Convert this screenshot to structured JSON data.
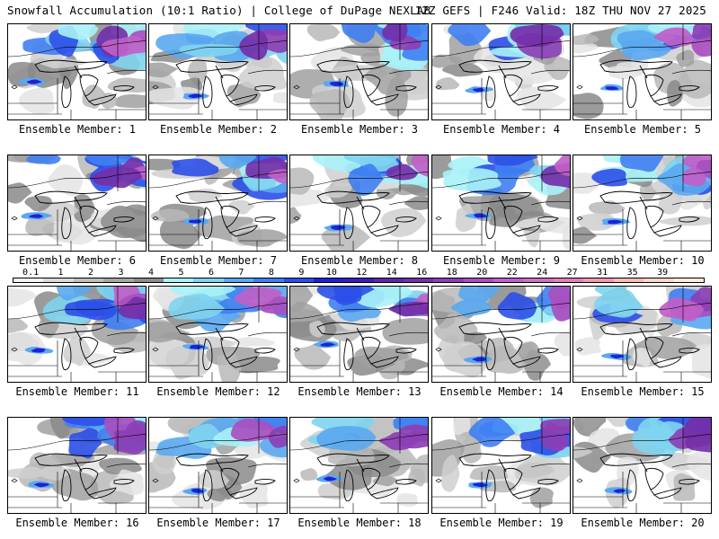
{
  "header": {
    "title_left": "Snowfall Accumulation (10:1 Ratio) | College of DuPage NEXLAB",
    "title_right": "12Z GEFS | F246 Valid: 18Z THU NOV 27 2025"
  },
  "colorbar": {
    "labels": [
      "0.1",
      "1",
      "2",
      "3",
      "4",
      "5",
      "6",
      "7",
      "8",
      "9",
      "10",
      "12",
      "14",
      "16",
      "18",
      "20",
      "22",
      "24",
      "27",
      "31",
      "35",
      "39"
    ],
    "colors": [
      "#f4f4f4",
      "#d9d9d9",
      "#bfbfbf",
      "#a6a6a6",
      "#8c8c8c",
      "#a9f2f7",
      "#7fd4f0",
      "#5aa8f0",
      "#3f7ff2",
      "#2b4fe8",
      "#1e22d6",
      "#3a1fb8",
      "#5a2aa8",
      "#7430a8",
      "#8c3fb4",
      "#a84fc0",
      "#c060c8",
      "#d070c0",
      "#e080b8",
      "#f09ab0",
      "#f8bcb4",
      "#fad8c8",
      "#fcebdd"
    ]
  },
  "members": [
    {
      "label": "Ensemble Member: 1"
    },
    {
      "label": "Ensemble Member: 2"
    },
    {
      "label": "Ensemble Member: 3"
    },
    {
      "label": "Ensemble Member: 4"
    },
    {
      "label": "Ensemble Member: 5"
    },
    {
      "label": "Ensemble Member: 6"
    },
    {
      "label": "Ensemble Member: 7"
    },
    {
      "label": "Ensemble Member: 8"
    },
    {
      "label": "Ensemble Member: 9"
    },
    {
      "label": "Ensemble Member: 10"
    },
    {
      "label": "Ensemble Member: 11"
    },
    {
      "label": "Ensemble Member: 12"
    },
    {
      "label": "Ensemble Member: 13"
    },
    {
      "label": "Ensemble Member: 14"
    },
    {
      "label": "Ensemble Member: 15"
    },
    {
      "label": "Ensemble Member: 16"
    },
    {
      "label": "Ensemble Member: 17"
    },
    {
      "label": "Ensemble Member: 18"
    },
    {
      "label": "Ensemble Member: 19"
    },
    {
      "label": "Ensemble Member: 20"
    }
  ]
}
